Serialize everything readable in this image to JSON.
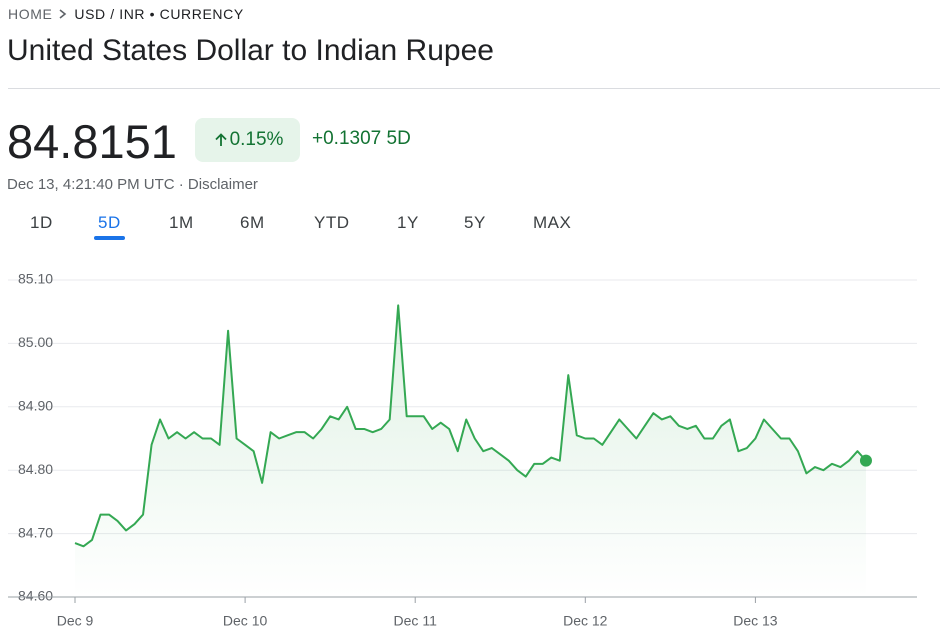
{
  "breadcrumb": [
    "HOME",
    "USD / INR • CURRENCY"
  ],
  "title": "United States Dollar to Indian Rupee",
  "price": "84.8151",
  "change_percent": "0.15%",
  "change": "+0.1307",
  "change_period": "5D",
  "timestamp": "Dec 13, 4:21:40 PM UTC",
  "separator": "·",
  "disclaimer": "Disclaimer",
  "tabs": [
    "1D",
    "5D",
    "1M",
    "6M",
    "YTD",
    "1Y",
    "5Y",
    "MAX"
  ],
  "active_tab": 1,
  "chart_data": {
    "type": "line",
    "color": "#34a853",
    "grid": true,
    "values": [
      84.685,
      84.68,
      84.69,
      84.73,
      84.73,
      84.72,
      84.705,
      84.715,
      84.73,
      84.84,
      84.88,
      84.85,
      84.86,
      84.85,
      84.86,
      84.85,
      84.85,
      84.84,
      85.02,
      84.85,
      84.84,
      84.83,
      84.78,
      84.86,
      84.85,
      84.855,
      84.86,
      84.86,
      84.85,
      84.865,
      84.885,
      84.88,
      84.9,
      84.865,
      84.865,
      84.86,
      84.865,
      84.88,
      85.06,
      84.885,
      84.885,
      84.885,
      84.865,
      84.875,
      84.865,
      84.83,
      84.88,
      84.85,
      84.83,
      84.835,
      84.825,
      84.815,
      84.8,
      84.79,
      84.81,
      84.81,
      84.82,
      84.815,
      84.95,
      84.855,
      84.85,
      84.85,
      84.84,
      84.86,
      84.88,
      84.865,
      84.85,
      84.87,
      84.89,
      84.88,
      84.885,
      84.87,
      84.865,
      84.87,
      84.85,
      84.85,
      84.87,
      84.88,
      84.83,
      84.835,
      84.85,
      84.88,
      84.865,
      84.85,
      84.85,
      84.83,
      84.795,
      84.805,
      84.8,
      84.81,
      84.805,
      84.815,
      84.83,
      84.8151
    ],
    "xlim": [
      0,
      99
    ],
    "xticks": [
      {
        "value": 0,
        "label": "Dec 9"
      },
      {
        "value": 20,
        "label": "Dec 10"
      },
      {
        "value": 40,
        "label": "Dec 11"
      },
      {
        "value": 60,
        "label": "Dec 12"
      },
      {
        "value": 80,
        "label": "Dec 13"
      }
    ],
    "ylim": [
      84.6,
      85.1
    ],
    "yticks": [
      {
        "value": 84.6,
        "label": "84.60"
      },
      {
        "value": 84.7,
        "label": "84.70"
      },
      {
        "value": 84.8,
        "label": "84.80"
      },
      {
        "value": 84.9,
        "label": "84.90"
      },
      {
        "value": 85.0,
        "label": "85.00"
      },
      {
        "value": 85.1,
        "label": "85.10"
      }
    ]
  }
}
